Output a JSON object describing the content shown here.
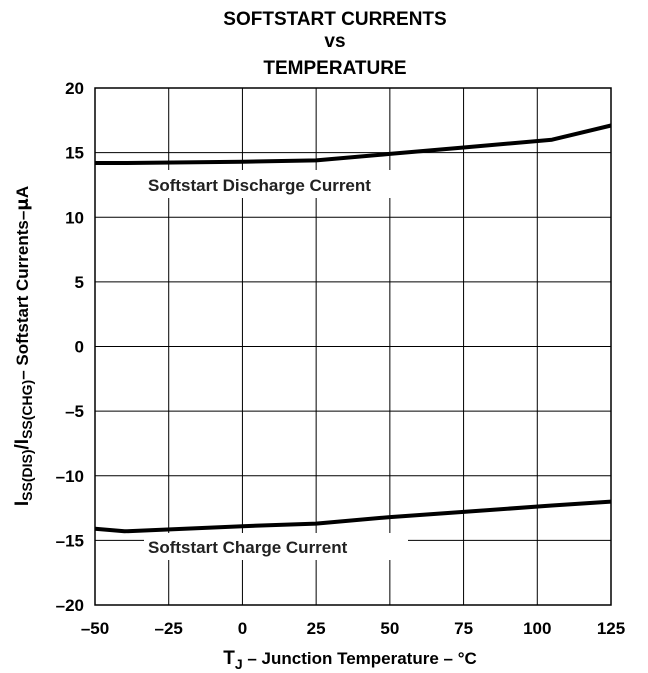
{
  "chart_data": {
    "type": "line",
    "title_lines": [
      "SOFTSTART CURRENTS",
      "vs",
      "TEMPERATURE"
    ],
    "xlabel_parts": {
      "t": "T",
      "sub": "J",
      "rest": " – Junction Temperature – °C"
    },
    "ylabel_parts": {
      "i1": "I",
      "sub1": "SS(DIS)",
      "i2": "/I",
      "sub2": "SS(CHG)",
      "rest": "– Softstart Currents–",
      "mu": "µ",
      "unit": "A"
    },
    "xlim": [
      -50,
      125
    ],
    "ylim": [
      -20,
      20
    ],
    "x_ticks": [
      -50,
      -25,
      0,
      25,
      50,
      75,
      100,
      125
    ],
    "y_ticks": [
      20,
      15,
      10,
      5,
      0,
      -5,
      -10,
      -15,
      -20
    ],
    "x_tick_labels": [
      "–50",
      "–25",
      "0",
      "25",
      "50",
      "75",
      "100",
      "125"
    ],
    "y_tick_labels": [
      "20",
      "15",
      "10",
      "5",
      "0",
      "–5",
      "–10",
      "–15",
      "–20"
    ],
    "grid": true,
    "series": [
      {
        "name": "Softstart Discharge Current",
        "x": [
          -50,
          -40,
          0,
          25,
          50,
          75,
          105,
          125
        ],
        "y": [
          14.2,
          14.2,
          14.3,
          14.4,
          14.9,
          15.4,
          16.0,
          17.1
        ]
      },
      {
        "name": "Softstart Charge Current",
        "x": [
          -50,
          -40,
          0,
          25,
          50,
          75,
          105,
          125
        ],
        "y": [
          -14.1,
          -14.3,
          -13.9,
          -13.7,
          -13.2,
          -12.8,
          -12.3,
          -12.0
        ]
      }
    ]
  }
}
